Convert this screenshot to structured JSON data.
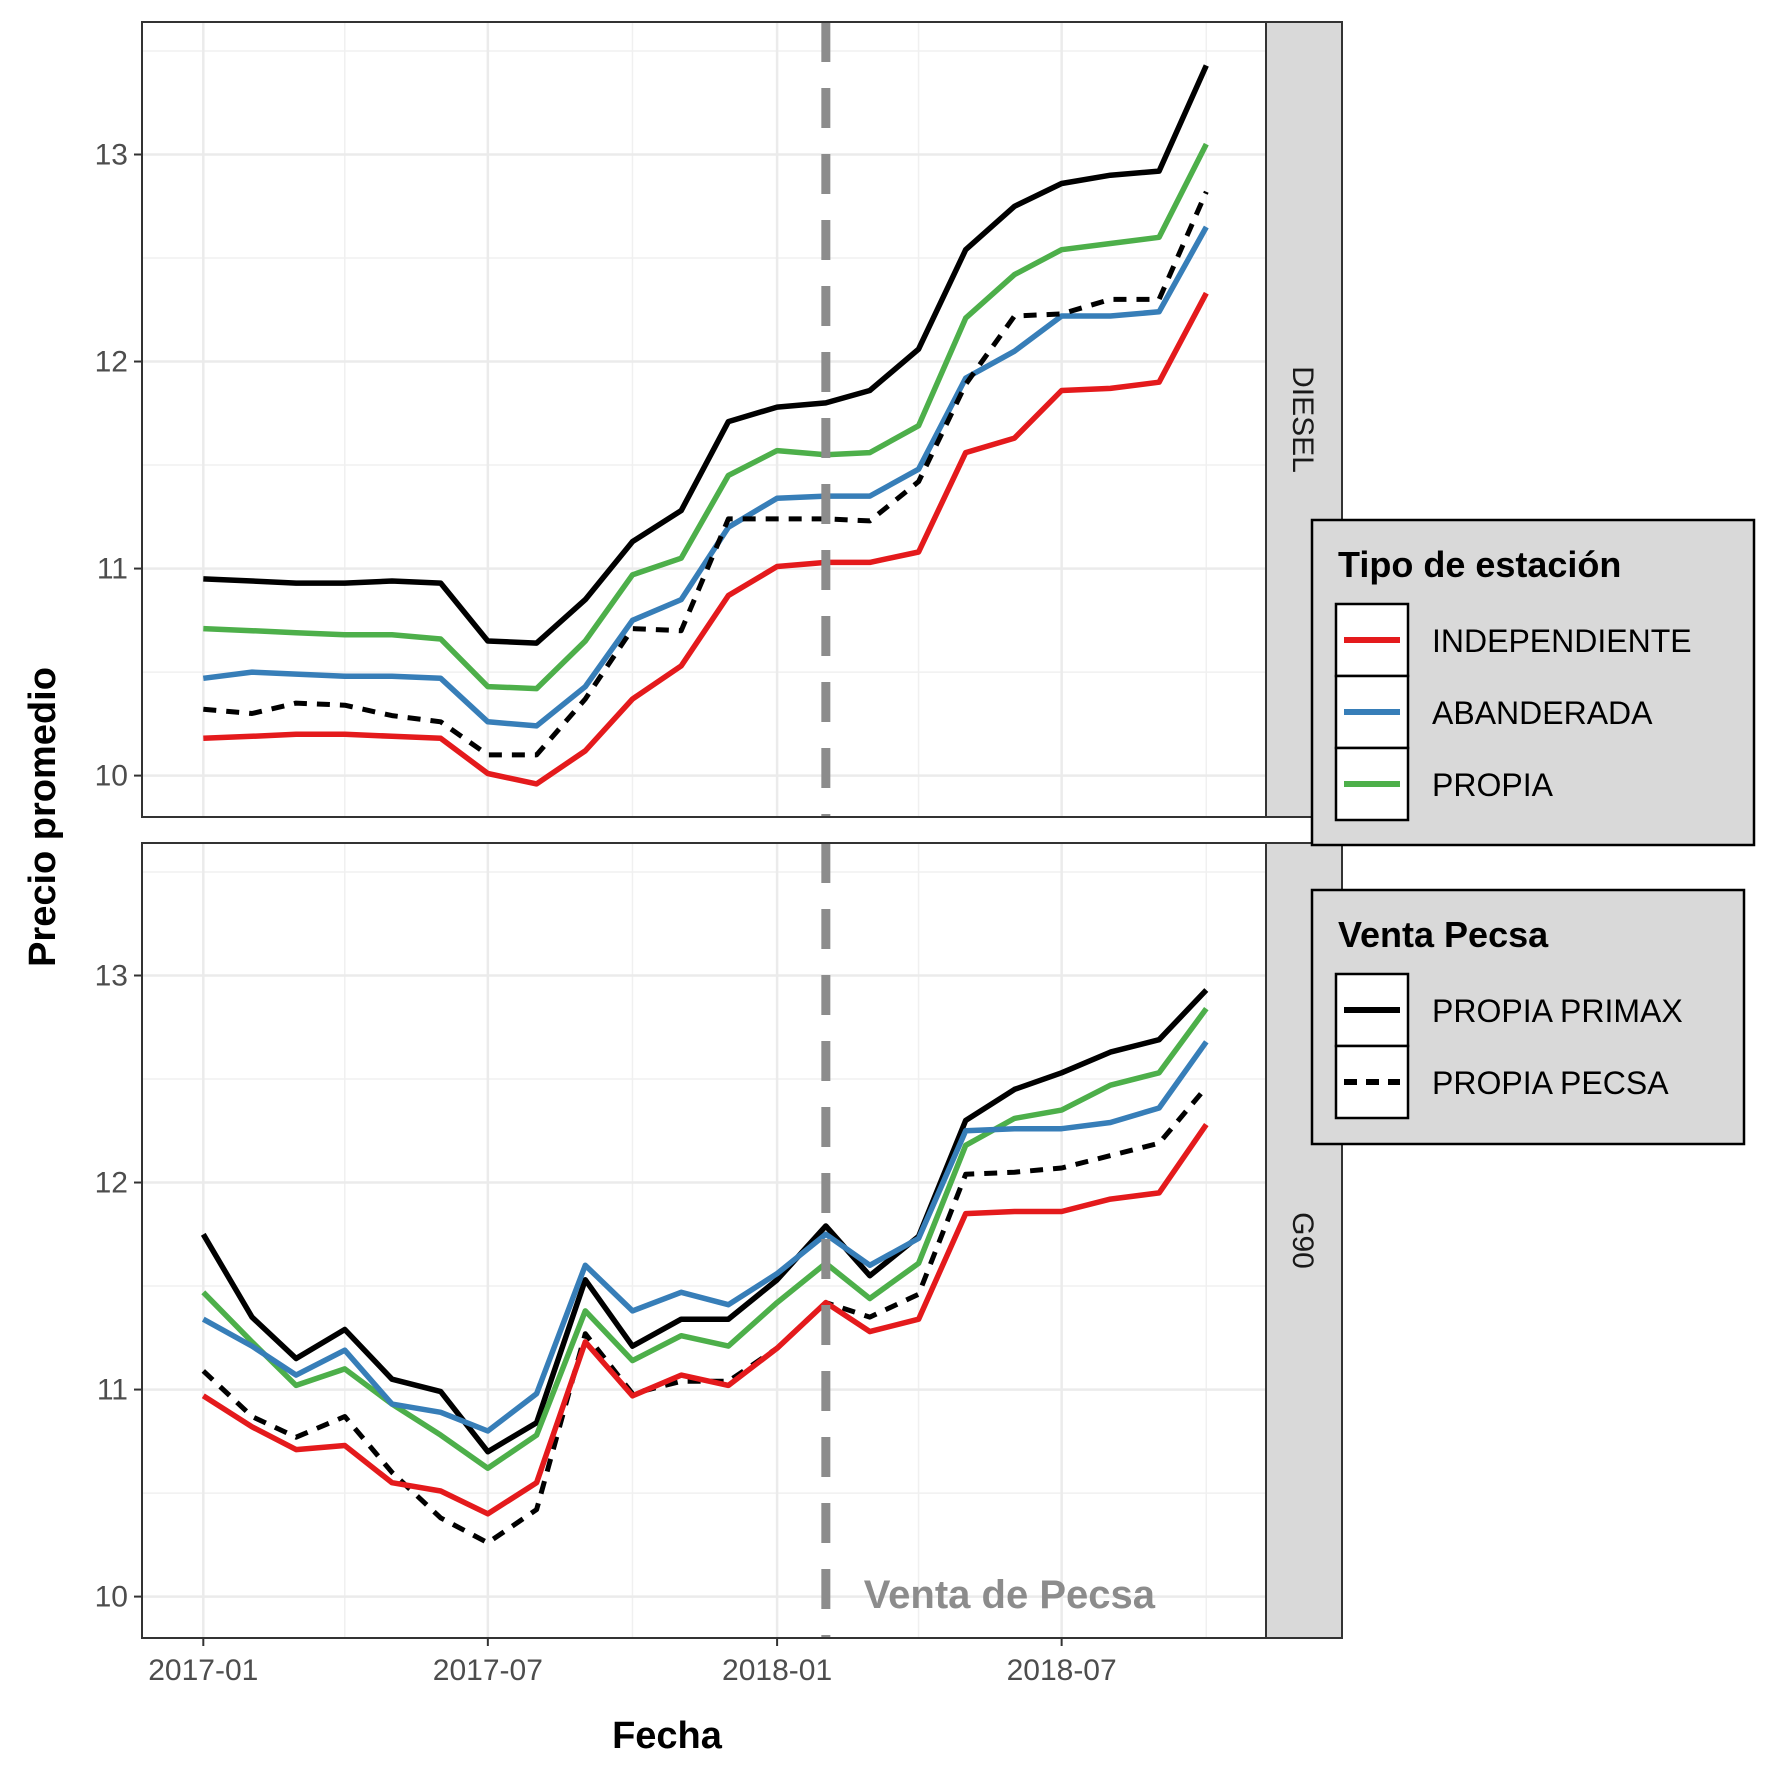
{
  "chart_data": {
    "type": "line",
    "xlabel": "Fecha",
    "ylabel": "Precio promedio",
    "x": [
      "2017-01",
      "2017-02",
      "2017-03",
      "2017-04",
      "2017-05",
      "2017-06",
      "2017-07",
      "2017-08",
      "2017-09",
      "2017-10",
      "2017-11",
      "2017-12",
      "2018-01",
      "2018-02",
      "2018-03",
      "2018-04",
      "2018-05",
      "2018-06",
      "2018-07",
      "2018-08",
      "2018-09",
      "2018-10"
    ],
    "x_ticks": [
      "2017-01",
      "2017-07",
      "2018-01",
      "2018-07"
    ],
    "x_range": [
      "2016-11-23",
      "2018-11-08"
    ],
    "ylim": [
      9.8,
      13.64
    ],
    "y_ticks": [
      10,
      11,
      12,
      13
    ],
    "grid": true,
    "vline": {
      "x": "2018-02-01",
      "color": "#8c8c8c",
      "style": "dashed"
    },
    "annotation": {
      "text": "Venta de Pecsa",
      "color": "#8c8c8c"
    },
    "legends": [
      {
        "title": "Tipo de estación",
        "placement": "right",
        "entries": [
          {
            "label": "INDEPENDIENTE",
            "series": "INDEPENDIENTE"
          },
          {
            "label": "ABANDERADA",
            "series": "ABANDERADA"
          },
          {
            "label": "PROPIA",
            "series": "PROPIA"
          }
        ]
      },
      {
        "title": "Venta Pecsa",
        "placement": "right",
        "entries": [
          {
            "label": "PROPIA PRIMAX",
            "series": "PROPIA PRIMAX"
          },
          {
            "label": "PROPIA PECSA",
            "series": "PROPIA PECSA"
          }
        ]
      }
    ],
    "series_styles": {
      "INDEPENDIENTE": {
        "color": "#e41a1c",
        "dash": "solid"
      },
      "ABANDERADA": {
        "color": "#377eb8",
        "dash": "solid"
      },
      "PROPIA": {
        "color": "#4daf4a",
        "dash": "solid"
      },
      "PROPIA PRIMAX": {
        "color": "#000000",
        "dash": "solid"
      },
      "PROPIA PECSA": {
        "color": "#000000",
        "dash": "dashed"
      }
    },
    "panels": [
      {
        "strip": "DIESEL",
        "series": [
          {
            "name": "PROPIA PRIMAX",
            "values": [
              10.95,
              10.94,
              10.93,
              10.93,
              10.94,
              10.93,
              10.65,
              10.64,
              10.85,
              11.13,
              11.28,
              11.71,
              11.78,
              11.8,
              11.86,
              12.06,
              12.54,
              12.75,
              12.86,
              12.9,
              12.92,
              13.43
            ]
          },
          {
            "name": "PROPIA",
            "values": [
              10.71,
              10.7,
              10.69,
              10.68,
              10.68,
              10.66,
              10.43,
              10.42,
              10.65,
              10.97,
              11.05,
              11.45,
              11.57,
              11.55,
              11.56,
              11.69,
              12.21,
              12.42,
              12.54,
              12.57,
              12.6,
              13.05
            ]
          },
          {
            "name": "ABANDERADA",
            "values": [
              10.47,
              10.5,
              10.49,
              10.48,
              10.48,
              10.47,
              10.26,
              10.24,
              10.43,
              10.75,
              10.85,
              11.2,
              11.34,
              11.35,
              11.35,
              11.48,
              11.92,
              12.05,
              12.22,
              12.22,
              12.24,
              12.65
            ]
          },
          {
            "name": "PROPIA PECSA",
            "values": [
              10.32,
              10.3,
              10.35,
              10.34,
              10.29,
              10.26,
              10.1,
              10.1,
              10.37,
              10.71,
              10.7,
              11.24,
              11.24,
              11.24,
              11.23,
              11.42,
              11.89,
              12.22,
              12.23,
              12.3,
              12.3,
              12.82
            ]
          },
          {
            "name": "INDEPENDIENTE",
            "values": [
              10.18,
              10.19,
              10.2,
              10.2,
              10.19,
              10.18,
              10.01,
              9.96,
              10.12,
              10.37,
              10.53,
              10.87,
              11.01,
              11.03,
              11.03,
              11.08,
              11.56,
              11.63,
              11.86,
              11.87,
              11.9,
              12.33
            ]
          }
        ]
      },
      {
        "strip": "G90",
        "series": [
          {
            "name": "PROPIA PRIMAX",
            "values": [
              11.75,
              11.35,
              11.15,
              11.29,
              11.05,
              10.99,
              10.7,
              10.84,
              11.53,
              11.21,
              11.34,
              11.34,
              11.53,
              11.79,
              11.55,
              11.74,
              12.3,
              12.45,
              12.53,
              12.63,
              12.69,
              12.93
            ]
          },
          {
            "name": "PROPIA",
            "values": [
              11.47,
              11.23,
              11.02,
              11.1,
              10.93,
              10.78,
              10.62,
              10.78,
              11.38,
              11.14,
              11.26,
              11.21,
              11.42,
              11.61,
              11.44,
              11.61,
              12.18,
              12.31,
              12.35,
              12.47,
              12.53,
              12.84
            ]
          },
          {
            "name": "ABANDERADA",
            "values": [
              11.34,
              11.21,
              11.07,
              11.19,
              10.93,
              10.89,
              10.8,
              10.98,
              11.6,
              11.38,
              11.47,
              11.41,
              11.56,
              11.75,
              11.6,
              11.73,
              12.25,
              12.26,
              12.26,
              12.29,
              12.36,
              12.68
            ]
          },
          {
            "name": "PROPIA PECSA",
            "values": [
              11.09,
              10.87,
              10.77,
              10.87,
              10.6,
              10.38,
              10.26,
              10.42,
              11.27,
              10.98,
              11.04,
              11.04,
              11.2,
              11.42,
              11.35,
              11.46,
              12.04,
              12.05,
              12.07,
              12.13,
              12.19,
              12.46
            ]
          },
          {
            "name": "INDEPENDIENTE",
            "values": [
              10.97,
              10.82,
              10.71,
              10.73,
              10.55,
              10.51,
              10.4,
              10.55,
              11.23,
              10.97,
              11.07,
              11.02,
              11.2,
              11.42,
              11.28,
              11.34,
              11.85,
              11.86,
              11.86,
              11.92,
              11.95,
              12.28
            ]
          }
        ]
      }
    ]
  }
}
